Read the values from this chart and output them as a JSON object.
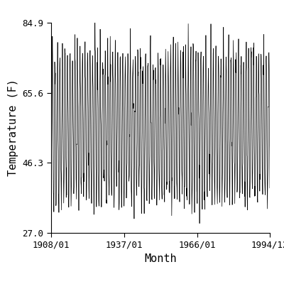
{
  "title": "",
  "xlabel": "Month",
  "ylabel": "Temperature (F)",
  "xlim_start_year": 1908,
  "xlim_start_month": 1,
  "xlim_end_year": 1994,
  "xlim_end_month": 12,
  "yticks": [
    27.0,
    46.3,
    65.6,
    84.9
  ],
  "xtick_labels": [
    "1908/01",
    "1937/01",
    "1966/01",
    "1994/12"
  ],
  "xtick_years": [
    1908,
    1937,
    1966,
    1994
  ],
  "xtick_months": [
    1,
    1,
    1,
    12
  ],
  "mean_temp": 56.25,
  "amplitude": 19.35,
  "noise_std": 3.5,
  "line_color": "#000000",
  "line_width": 0.5,
  "background_color": "#ffffff",
  "font_size": 9,
  "label_font_size": 11
}
